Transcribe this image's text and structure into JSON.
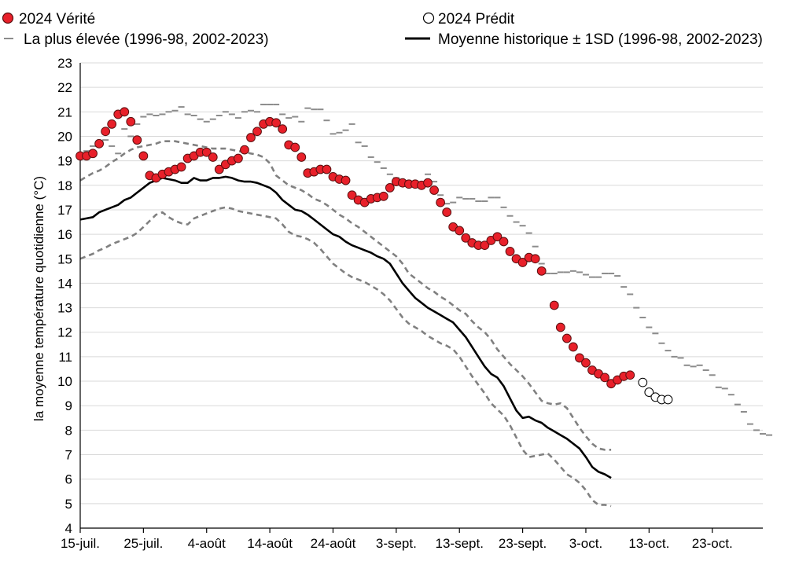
{
  "chart_data": {
    "type": "line",
    "title": "",
    "xlabel": "",
    "ylabel": "la moyenne température quotidienne (°C)",
    "ylim": [
      4,
      23
    ],
    "yticks": [
      4,
      5,
      6,
      7,
      8,
      9,
      10,
      11,
      12,
      13,
      14,
      15,
      16,
      17,
      18,
      19,
      20,
      21,
      22,
      23
    ],
    "xlim": [
      "2024-07-15",
      "2024-10-31"
    ],
    "xtick_labels": [
      "15-juil.",
      "25-juil.",
      "4-août",
      "14-août",
      "24-août",
      "3-sept.",
      "13-sept.",
      "23-sept.",
      "3-oct.",
      "13-oct.",
      "23-oct."
    ],
    "xtick_dates": [
      "2024-07-15",
      "2024-07-25",
      "2024-08-04",
      "2024-08-14",
      "2024-08-24",
      "2024-09-03",
      "2024-09-13",
      "2024-09-23",
      "2024-10-03",
      "2024-10-13",
      "2024-10-23"
    ],
    "grid": "horizontal",
    "legend_placement": "top",
    "colors": {
      "truth": "#e8202a",
      "mean": "#000000",
      "sd": "#808080",
      "highest": "#8c8c8c",
      "grid": "#d9d9d9"
    },
    "series": [
      {
        "name": "2024 Vérité",
        "type": "scatter",
        "marker": "filled-circle",
        "start": "2024-07-15",
        "values": [
          19.2,
          19.2,
          19.3,
          19.7,
          20.2,
          20.5,
          20.9,
          21.0,
          20.6,
          19.85,
          19.2,
          18.4,
          18.3,
          18.45,
          18.55,
          18.65,
          18.75,
          19.1,
          19.2,
          19.35,
          19.35,
          19.15,
          18.65,
          18.85,
          19.0,
          19.1,
          19.45,
          19.95,
          20.2,
          20.5,
          20.6,
          20.55,
          20.3,
          19.65,
          19.55,
          19.15,
          18.5,
          18.55,
          18.65,
          18.65,
          18.35,
          18.25,
          18.2,
          17.6,
          17.4,
          17.3,
          17.45,
          17.5,
          17.55,
          17.9,
          18.15,
          18.1,
          18.05,
          18.05,
          18.0,
          18.1,
          17.8,
          17.3,
          16.9,
          16.3,
          16.15,
          15.85,
          15.65,
          15.55,
          15.55,
          15.75,
          15.9,
          15.7,
          15.3,
          15.0,
          14.85,
          15.05,
          15.0,
          14.5,
          null,
          13.1,
          12.2,
          11.75,
          11.4,
          10.95,
          10.75,
          10.45,
          10.3,
          10.15,
          9.9,
          10.05,
          10.2,
          10.25
        ]
      },
      {
        "name": "2024 Prédit",
        "type": "scatter",
        "marker": "open-circle",
        "start": "2024-10-12",
        "values": [
          9.95,
          9.55,
          9.35,
          9.25,
          9.25
        ]
      },
      {
        "name": "La plus élevée (1996-98, 2002-2023)",
        "type": "dash-markers",
        "start": "2024-07-15",
        "values": [
          19.2,
          19.4,
          19.6,
          19.8,
          19.85,
          19.6,
          19.3,
          20.3,
          20.0,
          20.5,
          20.8,
          20.9,
          20.85,
          20.9,
          21.0,
          21.05,
          21.2,
          20.9,
          20.85,
          20.7,
          20.6,
          20.7,
          20.85,
          21.0,
          20.9,
          20.75,
          21.0,
          21.05,
          21.0,
          21.3,
          21.3,
          21.3,
          20.9,
          20.75,
          20.8,
          20.6,
          21.15,
          21.1,
          21.1,
          20.65,
          20.1,
          20.15,
          20.25,
          20.5,
          19.75,
          19.6,
          19.15,
          18.95,
          18.7,
          18.45,
          18.3,
          18.05,
          18.1,
          18.0,
          18.05,
          18.45,
          18.15,
          17.6,
          17.25,
          17.3,
          17.5,
          17.45,
          17.45,
          17.35,
          17.35,
          17.5,
          17.5,
          17.1,
          16.75,
          16.5,
          16.35,
          16.05,
          15.5,
          14.8,
          14.4,
          14.4,
          14.45,
          14.45,
          14.5,
          14.45,
          14.35,
          14.25,
          14.25,
          14.4,
          14.4,
          14.3,
          13.85,
          13.55,
          13.0,
          12.6,
          12.2,
          11.95,
          11.55,
          11.25,
          11.0,
          10.95,
          10.65,
          10.6,
          10.65,
          10.45,
          10.25,
          9.75,
          9.7,
          9.45,
          9.05,
          8.75,
          8.25,
          8.0,
          7.85,
          7.8
        ]
      },
      {
        "name": "Moyenne historique ± 1SD (1996-98, 2002-2023)",
        "type": "line",
        "start": "2024-07-15",
        "values": [
          16.6,
          16.65,
          16.7,
          16.9,
          17.0,
          17.1,
          17.2,
          17.4,
          17.5,
          17.7,
          17.9,
          18.1,
          18.2,
          18.3,
          18.25,
          18.2,
          18.1,
          18.1,
          18.3,
          18.2,
          18.2,
          18.3,
          18.3,
          18.35,
          18.3,
          18.2,
          18.15,
          18.15,
          18.1,
          18.0,
          17.9,
          17.7,
          17.4,
          17.2,
          17.0,
          16.95,
          16.8,
          16.6,
          16.4,
          16.2,
          16.0,
          15.9,
          15.7,
          15.55,
          15.45,
          15.35,
          15.25,
          15.1,
          15.0,
          14.8,
          14.4,
          14.0,
          13.7,
          13.4,
          13.2,
          13.0,
          12.85,
          12.7,
          12.55,
          12.4,
          12.1,
          11.8,
          11.4,
          11.0,
          10.6,
          10.3,
          10.15,
          9.8,
          9.3,
          8.8,
          8.5,
          8.55,
          8.4,
          8.3,
          8.1,
          7.95,
          7.8,
          7.65,
          7.45,
          7.25,
          6.9,
          6.5,
          6.3,
          6.2,
          6.05
        ]
      },
      {
        "name": "+1SD",
        "type": "dashed-line",
        "start": "2024-07-15",
        "values": [
          18.2,
          18.35,
          18.5,
          18.6,
          18.75,
          18.95,
          19.1,
          19.3,
          19.45,
          19.55,
          19.6,
          19.65,
          19.7,
          19.8,
          19.8,
          19.8,
          19.75,
          19.7,
          19.65,
          19.6,
          19.55,
          19.5,
          19.5,
          19.5,
          19.45,
          19.4,
          19.35,
          19.3,
          19.25,
          19.15,
          18.9,
          18.4,
          18.2,
          18.0,
          17.9,
          17.8,
          17.65,
          17.45,
          17.35,
          17.2,
          17.0,
          16.8,
          16.65,
          16.45,
          16.3,
          16.1,
          15.9,
          15.7,
          15.5,
          15.3,
          15.1,
          14.8,
          14.4,
          14.2,
          14.0,
          13.8,
          13.65,
          13.45,
          13.3,
          13.1,
          12.9,
          12.75,
          12.45,
          12.2,
          12.0,
          11.7,
          11.3,
          11.0,
          10.7,
          10.45,
          10.2,
          9.9,
          9.55,
          9.2,
          9.1,
          9.05,
          9.1,
          8.9,
          8.5,
          8.1,
          7.75,
          7.45,
          7.25,
          7.2,
          7.2
        ]
      },
      {
        "name": "-1SD",
        "type": "dashed-line",
        "start": "2024-07-15",
        "values": [
          15.0,
          15.1,
          15.2,
          15.35,
          15.45,
          15.6,
          15.7,
          15.8,
          15.9,
          16.05,
          16.3,
          16.55,
          16.8,
          16.9,
          16.7,
          16.55,
          16.45,
          16.4,
          16.65,
          16.75,
          16.85,
          16.95,
          17.05,
          17.1,
          17.05,
          16.95,
          16.9,
          16.85,
          16.8,
          16.75,
          16.7,
          16.65,
          16.4,
          16.1,
          15.95,
          15.9,
          15.8,
          15.65,
          15.4,
          15.1,
          14.8,
          14.6,
          14.4,
          14.25,
          14.15,
          14.05,
          13.9,
          13.75,
          13.55,
          13.3,
          12.95,
          12.6,
          12.35,
          12.2,
          12.05,
          11.85,
          11.7,
          11.55,
          11.45,
          11.3,
          11.0,
          10.6,
          10.2,
          9.85,
          9.5,
          9.1,
          8.85,
          8.6,
          8.2,
          7.7,
          7.2,
          6.9,
          6.95,
          7.0,
          7.05,
          6.8,
          6.5,
          6.2,
          6.05,
          5.85,
          5.55,
          5.15,
          4.95,
          4.95,
          4.9
        ]
      }
    ]
  }
}
